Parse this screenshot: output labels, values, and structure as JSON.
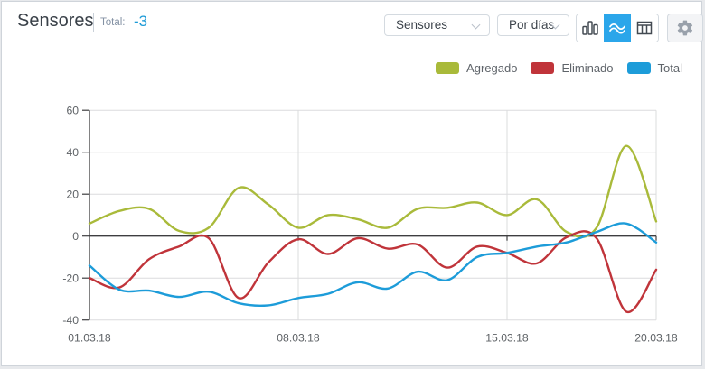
{
  "header": {
    "title": "Sensores",
    "total_label": "Total:",
    "total_value": "-3"
  },
  "toolbar": {
    "selects": [
      {
        "value": "Sensores"
      },
      {
        "value": "Por días"
      }
    ],
    "view_buttons": [
      {
        "name": "bar-chart-view",
        "active": false
      },
      {
        "name": "line-chart-view",
        "active": true
      },
      {
        "name": "table-view",
        "active": false
      }
    ],
    "active_view_color": "#2ba6ea"
  },
  "legend": [
    {
      "label": "Agregado",
      "color": "#a9ba3a"
    },
    {
      "label": "Eliminado",
      "color": "#c0343a"
    },
    {
      "label": "Total",
      "color": "#1d9cd9"
    }
  ],
  "chart_data": {
    "type": "line",
    "title": "",
    "xlabel": "",
    "ylabel": "",
    "x_days": [
      1,
      2,
      3,
      4,
      5,
      6,
      7,
      8,
      9,
      10,
      11,
      12,
      13,
      14,
      15,
      16,
      17,
      18,
      19,
      20
    ],
    "series": [
      {
        "name": "Agregado",
        "color": "#a9ba3a",
        "values": [
          6,
          12,
          13,
          2.5,
          4,
          23,
          15,
          4,
          10,
          8,
          4,
          13,
          13.5,
          16,
          10,
          17.5,
          2,
          4,
          43,
          7
        ]
      },
      {
        "name": "Eliminado",
        "color": "#c0343a",
        "values": [
          -20,
          -24.5,
          -11,
          -5,
          -1,
          -29.5,
          -12.5,
          -1.5,
          -8.5,
          -1,
          -6,
          -4,
          -15,
          -5,
          -8,
          -13,
          -0.5,
          -1,
          -36,
          -16
        ]
      },
      {
        "name": "Total",
        "color": "#1d9cd9",
        "values": [
          -14,
          -25.5,
          -26,
          -29,
          -26.5,
          -32,
          -33,
          -29.5,
          -27.5,
          -22,
          -25,
          -17,
          -21,
          -10,
          -8,
          -5,
          -3,
          2,
          6,
          -3
        ]
      }
    ],
    "ylim": [
      -40,
      60
    ],
    "yticks": [
      {
        "value": 60,
        "label": "60"
      },
      {
        "value": 40,
        "label": "40"
      },
      {
        "value": 20,
        "label": "20"
      },
      {
        "value": 0,
        "label": "0"
      },
      {
        "value": -20,
        "label": "-20"
      },
      {
        "value": -40,
        "label": "-40"
      }
    ],
    "xticks": [
      {
        "day": 1,
        "label": "01.03.18"
      },
      {
        "day": 8,
        "label": "08.03.18"
      },
      {
        "day": 15,
        "label": "15.03.18"
      },
      {
        "day": 20,
        "label": "20.03.18"
      }
    ],
    "grid": true,
    "legend_position": "top-right"
  }
}
